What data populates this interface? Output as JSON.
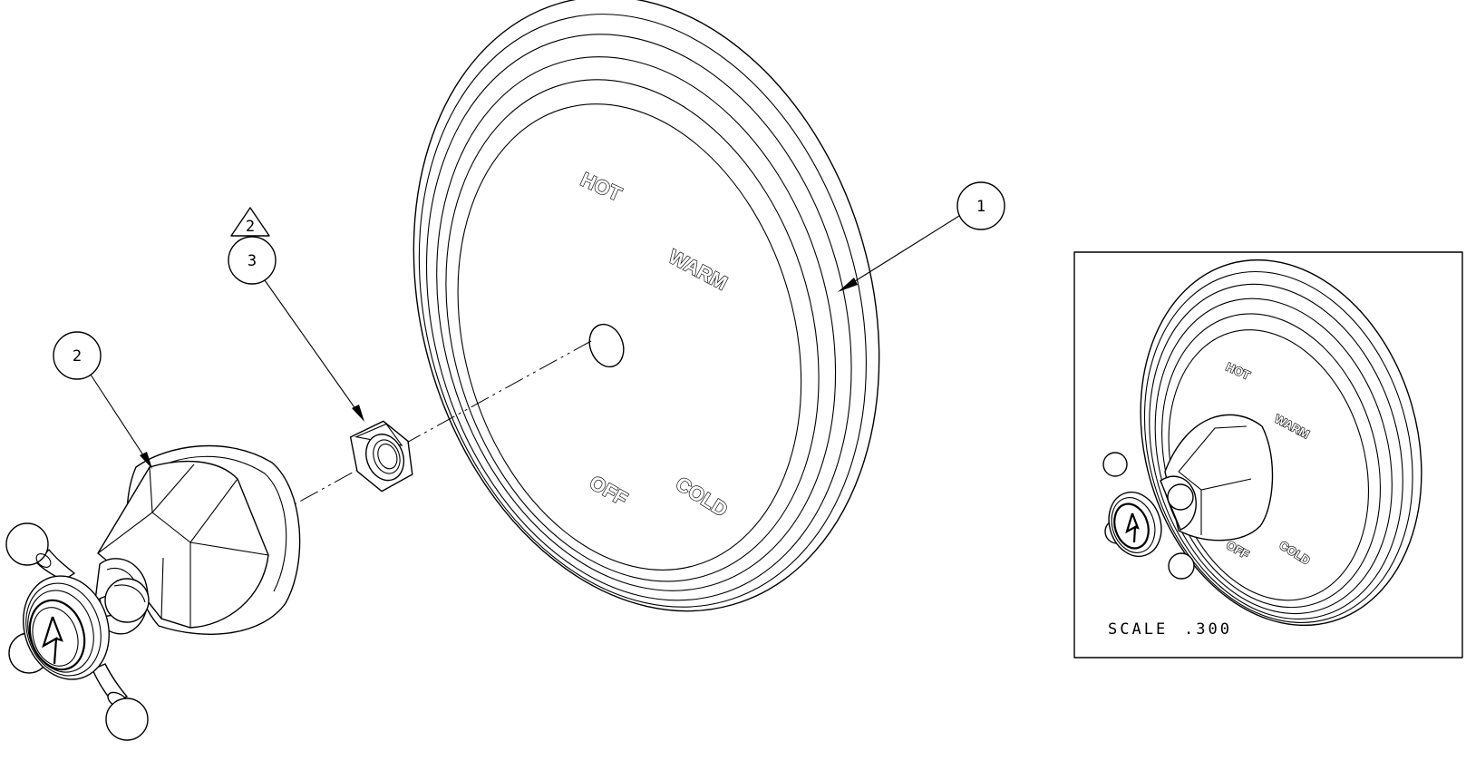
{
  "callouts": {
    "item1": "1",
    "item2": "2",
    "item3": "3",
    "revision_flag": "2"
  },
  "dial_labels": {
    "hot": "HOT",
    "warm": "WARM",
    "off": "OFF",
    "cold": "COLD"
  },
  "detail_view": {
    "scale_label": "SCALE",
    "scale_value": ".300"
  },
  "line_color": "#000000",
  "background": "#ffffff"
}
